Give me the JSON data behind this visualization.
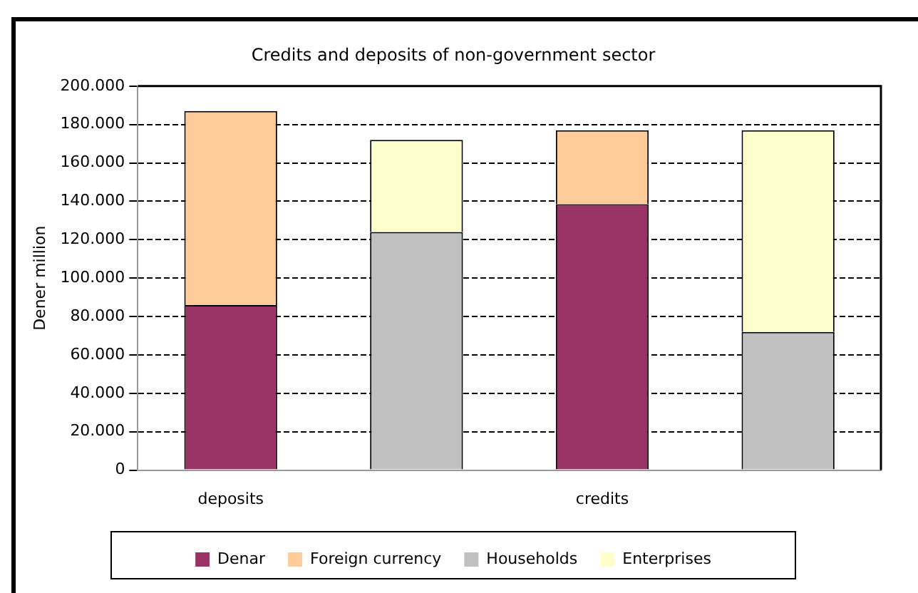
{
  "chart_data": {
    "type": "bar",
    "title": "Credits and deposits of non-government sector",
    "ylabel": "Dener million",
    "stacked": true,
    "categories": [
      "deposits",
      null,
      "credits",
      null
    ],
    "series": [
      {
        "name": "Denar",
        "color": "#993366",
        "values": [
          86000,
          null,
          138500,
          null
        ]
      },
      {
        "name": "Foreign currency",
        "color": "#ffcc99",
        "values": [
          101000,
          null,
          38500,
          null
        ]
      },
      {
        "name": "Households",
        "color": "#c0c0c0",
        "values": [
          null,
          124000,
          null,
          72000
        ]
      },
      {
        "name": "Enterprises",
        "color": "#ffffcc",
        "values": [
          null,
          48000,
          null,
          105000
        ]
      }
    ],
    "ylim": [
      0,
      200000
    ],
    "yticks": [
      0,
      {
        "value": 20000,
        "label": "20.000"
      },
      {
        "value": 40000,
        "label": "40.000"
      },
      {
        "value": 60000,
        "label": "60.000"
      },
      {
        "value": 80000,
        "label": "80.000"
      },
      {
        "value": 100000,
        "label": "100.000"
      },
      {
        "value": 120000,
        "label": "120.000"
      },
      {
        "value": 140000,
        "label": "140.000"
      },
      {
        "value": 160000,
        "label": "160.000"
      },
      {
        "value": 180000,
        "label": "180.000"
      },
      {
        "value": 200000,
        "label": "200.000"
      }
    ],
    "grid": "y",
    "legend": "bottom"
  }
}
